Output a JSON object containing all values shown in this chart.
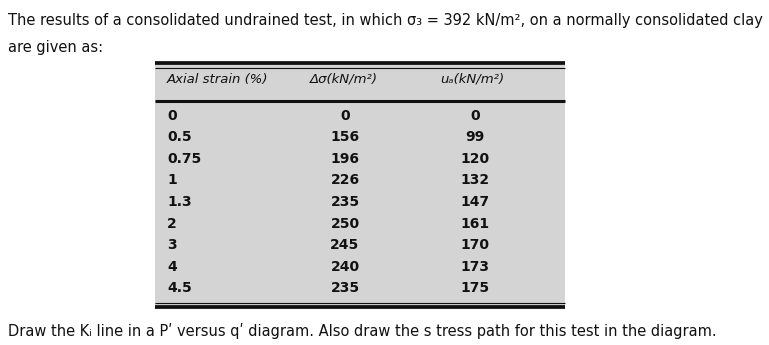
{
  "title_line1": "The results of a consolidated undrained test, in which σ₃ = 392 kN/m², on a normally consolidated clay",
  "title_line2": "are given as:",
  "footer": "Draw the Kᵢ line in a Pʹ versus qʹ diagram. Also draw the s tress path for this test in the diagram.",
  "col_headers": [
    "Axial strain (%)",
    "Δσ(kN/m²)",
    "uₐ(kN/m²)"
  ],
  "rows": [
    [
      "0",
      "0",
      "0"
    ],
    [
      "0.5",
      "156",
      "99"
    ],
    [
      "0.75",
      "196",
      "120"
    ],
    [
      "1",
      "226",
      "132"
    ],
    [
      "1.3",
      "235",
      "147"
    ],
    [
      "2",
      "250",
      "161"
    ],
    [
      "3",
      "245",
      "170"
    ],
    [
      "4",
      "240",
      "173"
    ],
    [
      "4.5",
      "235",
      "175"
    ]
  ],
  "table_bg": "#d4d4d4",
  "table_border_color": "#111111",
  "text_color": "#111111",
  "font_size_title": 10.5,
  "font_size_footer": 10.5,
  "font_size_header": 9.5,
  "font_size_body": 10.0,
  "lw_thick": 2.2,
  "fig_width": 7.69,
  "fig_height": 3.45,
  "fig_dpi": 100
}
